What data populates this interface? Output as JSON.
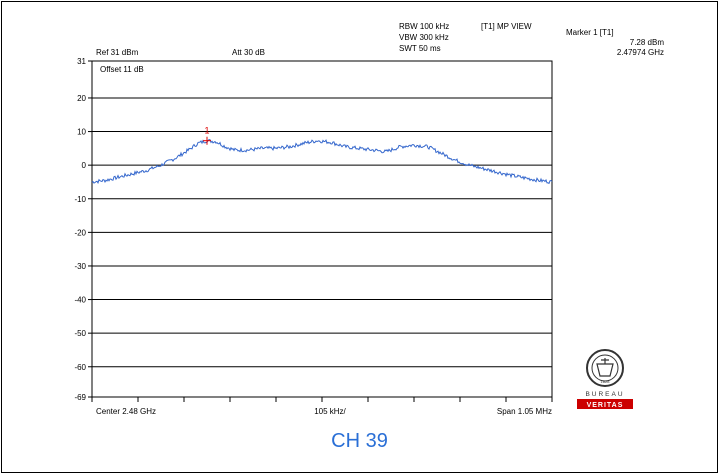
{
  "header": {
    "rbw": "RBW 100 kHz",
    "vbw": "VBW 300 kHz",
    "swt": "SWT 50 ms",
    "mode": "[T1] MP VIEW",
    "marker_title": "Marker 1 [T1]",
    "marker_level": "7.28 dBm",
    "marker_freq": "2.47974 GHz",
    "ref_level": "Ref 31 dBm",
    "attenuation": "Att  30 dB",
    "offset": "Offset 11 dB"
  },
  "footer": {
    "center": "Center 2.48 GHz",
    "div": "105 kHz/",
    "span": "Span 1.05 MHz"
  },
  "channel": "CH 39",
  "logo": {
    "text_top": "BUREAU",
    "text_bottom": "VERITAS",
    "year": "1828",
    "color": "#cc0000"
  },
  "colors": {
    "trace": "#3366cc",
    "marker": "#dd0000",
    "channel_text": "#2a6fd6"
  },
  "chart_data": {
    "type": "line",
    "ylim": [
      -69,
      31
    ],
    "yticks": [
      31,
      20,
      10,
      0,
      -10,
      -20,
      -30,
      -40,
      -50,
      -60,
      -69
    ],
    "xlim": [
      0,
      10
    ],
    "grid": true,
    "marker": {
      "label": "1",
      "x": 2.5,
      "y": 7.28
    },
    "series": [
      {
        "x": [
          0,
          0.3,
          0.6,
          0.9,
          1.2,
          1.5,
          1.8,
          2.1,
          2.3,
          2.5,
          2.7,
          2.9,
          3.1,
          3.4,
          3.7,
          4.0,
          4.3,
          4.6,
          4.9,
          5.2,
          5.5,
          5.8,
          6.1,
          6.4,
          6.7,
          7.0,
          7.3,
          7.6,
          7.9,
          8.2,
          8.5,
          8.8,
          9.1,
          9.4,
          9.7,
          10
        ],
        "y": [
          -5,
          -4.5,
          -3.5,
          -2.5,
          -1.5,
          0,
          2,
          4.5,
          6.5,
          7.3,
          7,
          5.5,
          4.5,
          4.5,
          5,
          5,
          5.5,
          6.5,
          7.3,
          6.8,
          5.5,
          5,
          4.5,
          4,
          5.5,
          6,
          5.5,
          3.5,
          1.5,
          0,
          -1,
          -2,
          -3,
          -3.8,
          -4.5,
          -5
        ]
      }
    ]
  }
}
